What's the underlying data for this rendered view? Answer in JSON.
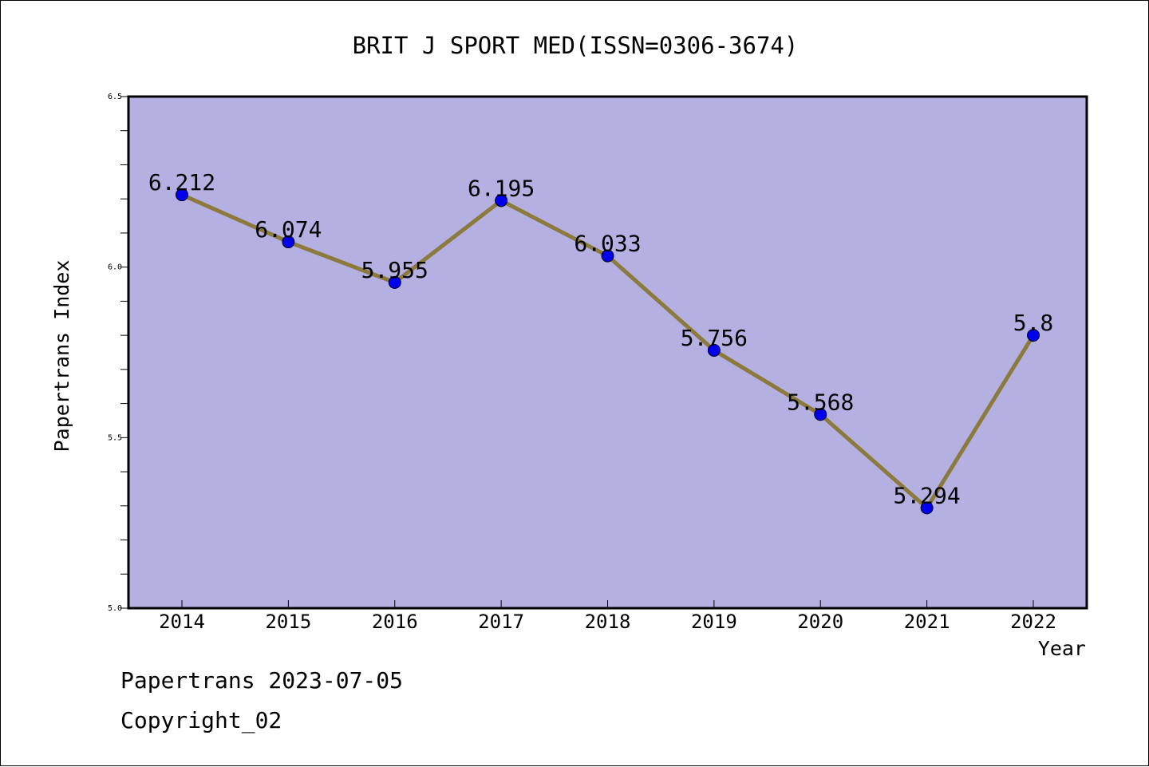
{
  "chart_data": {
    "type": "line",
    "title": "BRIT J SPORT MED(ISSN=0306-3674)",
    "xlabel": "Year",
    "ylabel": "Papertrans Index",
    "x": [
      "2014",
      "2015",
      "2016",
      "2017",
      "2018",
      "2019",
      "2020",
      "2021",
      "2022"
    ],
    "series": [
      {
        "values": [
          6.212,
          6.074,
          5.955,
          6.195,
          6.033,
          5.756,
          5.568,
          5.294,
          5.8
        ],
        "labels": [
          "6.212",
          "6.074",
          "5.955",
          "6.195",
          "6.033",
          "5.756",
          "5.568",
          "5.294",
          "5.8"
        ]
      }
    ],
    "ylim": [
      5.0,
      6.5
    ],
    "yticks": [
      "5.0",
      "5.5",
      "6.0",
      "6.5"
    ],
    "grid": false,
    "colors": {
      "plot_bg": "#b5b0e2",
      "line": "#8c7a3c",
      "marker": "#0000ee"
    }
  },
  "footer": {
    "line1": "Papertrans 2023-07-05",
    "line2": "Copyright_02"
  }
}
